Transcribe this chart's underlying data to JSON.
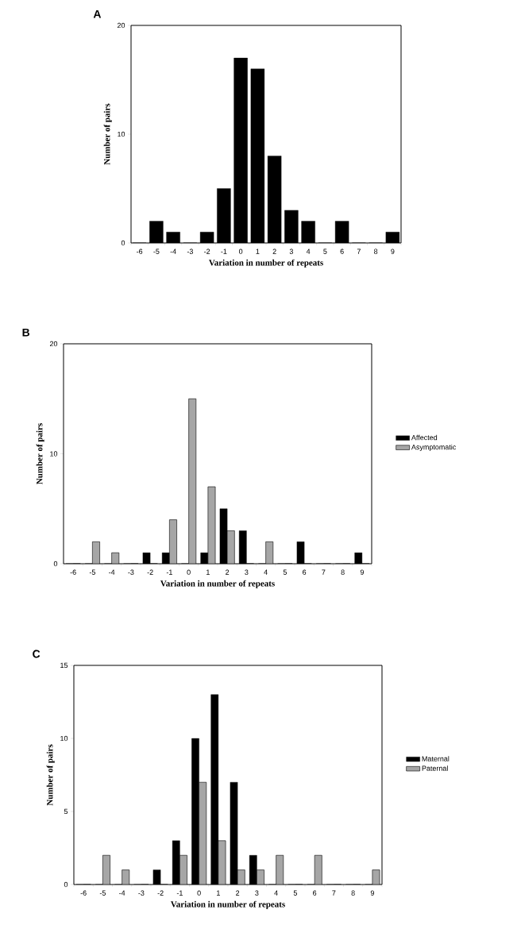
{
  "chart_data": [
    {
      "type": "bar",
      "title": "A",
      "xlabel": "Variation in number of repeats",
      "ylabel": "Number of pairs",
      "categories": [
        "-6",
        "-5",
        "-4",
        "-3",
        "-2",
        "-1",
        "0",
        "1",
        "2",
        "3",
        "4",
        "5",
        "6",
        "7",
        "8",
        "9"
      ],
      "values": [
        0,
        2,
        1,
        0,
        1,
        5,
        17,
        16,
        8,
        3,
        2,
        0,
        2,
        0,
        0,
        1
      ],
      "color": "#000000",
      "ylim": [
        0,
        20
      ],
      "yticks": [
        0,
        10,
        20
      ],
      "grid": false,
      "legend": false
    },
    {
      "type": "bar",
      "title": "B",
      "xlabel": "Variation in number of repeats",
      "ylabel": "Number of pairs",
      "categories": [
        "-6",
        "-5",
        "-4",
        "-3",
        "-2",
        "-1",
        "0",
        "1",
        "2",
        "3",
        "4",
        "5",
        "6",
        "7",
        "8",
        "9"
      ],
      "series": [
        {
          "name": "Affected",
          "color": "#000000",
          "values": [
            0,
            0,
            0,
            0,
            1,
            1,
            0,
            1,
            5,
            3,
            0,
            0,
            2,
            0,
            0,
            1
          ]
        },
        {
          "name": "Asymptomatic",
          "color": "#a6a6a6",
          "values": [
            0,
            2,
            1,
            0,
            0,
            4,
            15,
            7,
            3,
            0,
            2,
            0,
            0,
            0,
            0,
            0
          ]
        }
      ],
      "ylim": [
        0,
        20
      ],
      "yticks": [
        0,
        10,
        20
      ],
      "grid": false,
      "legend": "right"
    },
    {
      "type": "bar",
      "title": "C",
      "xlabel": "Variation in number of repeats",
      "ylabel": "Number of pairs",
      "categories": [
        "-6",
        "-5",
        "-4",
        "-3",
        "-2",
        "-1",
        "0",
        "1",
        "2",
        "3",
        "4",
        "5",
        "6",
        "7",
        "8",
        "9"
      ],
      "series": [
        {
          "name": "Maternal",
          "color": "#000000",
          "values": [
            0,
            0,
            0,
            0,
            1,
            3,
            10,
            13,
            7,
            2,
            0,
            0,
            0,
            0,
            0,
            0
          ]
        },
        {
          "name": "Paternal",
          "color": "#a6a6a6",
          "values": [
            0,
            2,
            1,
            0,
            0,
            2,
            7,
            3,
            1,
            1,
            2,
            0,
            2,
            0,
            0,
            1
          ]
        }
      ],
      "ylim": [
        0,
        15
      ],
      "yticks": [
        0,
        5,
        10,
        15
      ],
      "grid": false,
      "legend": "right"
    }
  ]
}
